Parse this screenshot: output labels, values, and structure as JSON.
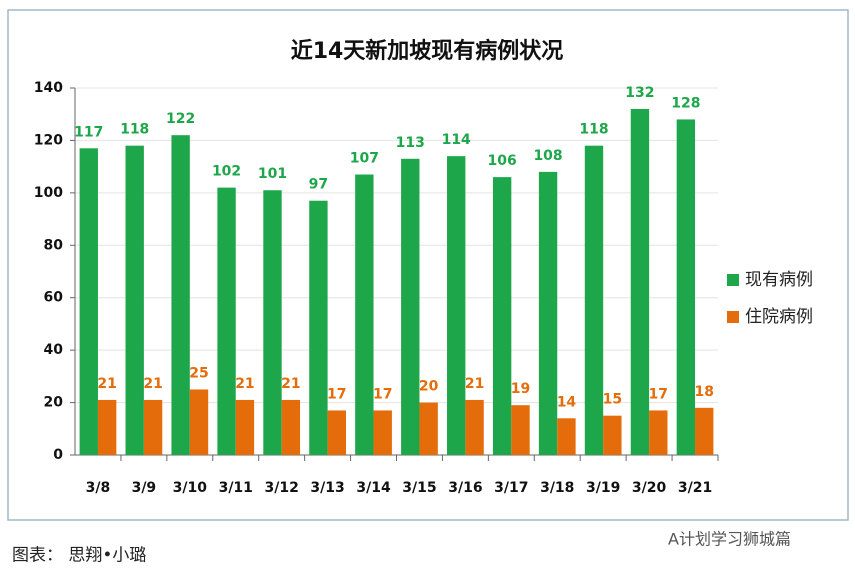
{
  "chart_data": {
    "type": "bar",
    "title": "近14天新加坡现有病例状况",
    "categories": [
      "3/8",
      "3/9",
      "3/10",
      "3/11",
      "3/12",
      "3/13",
      "3/14",
      "3/15",
      "3/16",
      "3/17",
      "3/18",
      "3/19",
      "3/20",
      "3/21"
    ],
    "series": [
      {
        "name": "现有病例",
        "color": "#1ea64b",
        "values": [
          117,
          118,
          122,
          102,
          101,
          97,
          107,
          113,
          114,
          106,
          108,
          118,
          132,
          128
        ]
      },
      {
        "name": "住院病例",
        "color": "#e46c0a",
        "values": [
          21,
          21,
          25,
          21,
          21,
          17,
          17,
          20,
          21,
          19,
          14,
          15,
          17,
          18
        ]
      }
    ],
    "ylim": [
      0,
      140
    ],
    "yticks": [
      0,
      20,
      40,
      60,
      80,
      100,
      120,
      140
    ],
    "grid": true,
    "legend": "right",
    "caption": "图表： 思翔•小璐",
    "watermark": "A计划学习狮城篇"
  }
}
